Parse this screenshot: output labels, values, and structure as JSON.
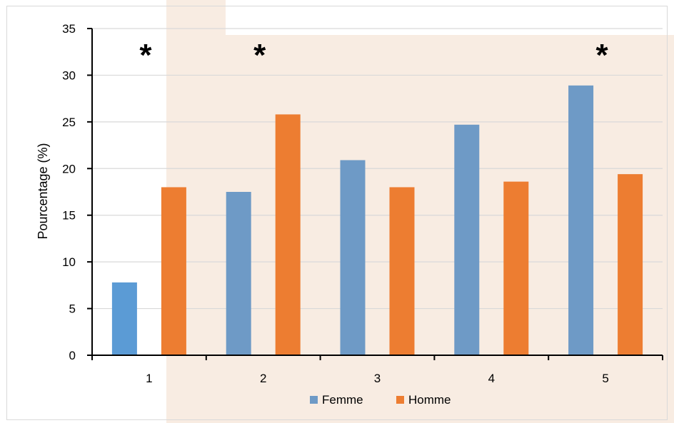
{
  "chart_data": {
    "type": "bar",
    "categories": [
      "1",
      "2",
      "3",
      "4",
      "5"
    ],
    "series": [
      {
        "name": "Femme",
        "values": [
          7.8,
          17.5,
          20.9,
          24.7,
          28.9
        ]
      },
      {
        "name": "Homme",
        "values": [
          18.0,
          25.8,
          18.0,
          18.6,
          19.4
        ]
      }
    ],
    "title": "",
    "xlabel": "",
    "ylabel": "Pourcentage (%)",
    "ylim": [
      0,
      35
    ],
    "yticks": [
      "0",
      "5",
      "10",
      "15",
      "20",
      "25",
      "30",
      "35"
    ],
    "grid": true,
    "legend": "bottom-center",
    "annotations": [
      {
        "category": "1",
        "text": "*"
      },
      {
        "category": "2",
        "text": "*"
      },
      {
        "category": "5",
        "text": "*"
      }
    ],
    "colors": {
      "Femme": "#6e9ac6",
      "Homme": "#ed7d31"
    }
  }
}
